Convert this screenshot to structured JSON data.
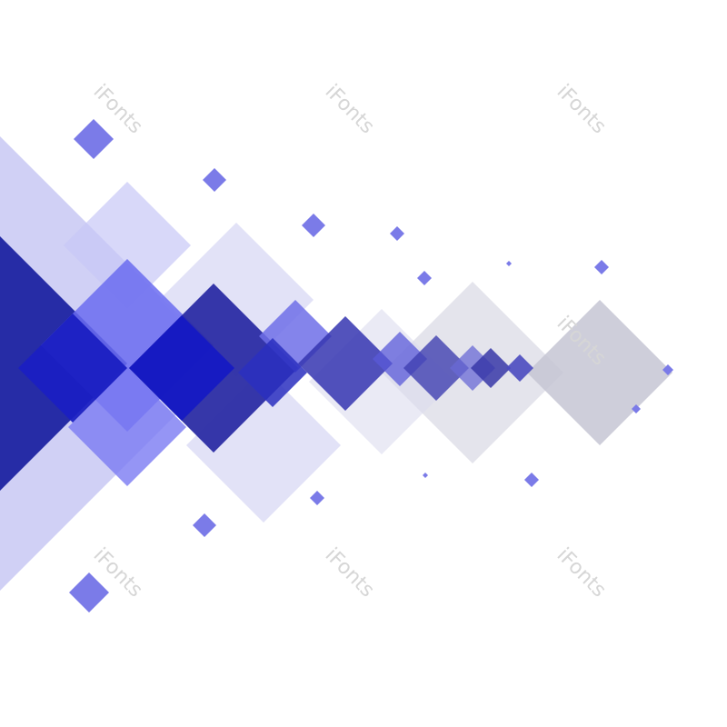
{
  "watermarks": [
    "iFonts",
    "iFonts",
    "iFonts",
    "iFonts",
    "iFonts",
    "iFonts",
    "iFonts"
  ]
}
